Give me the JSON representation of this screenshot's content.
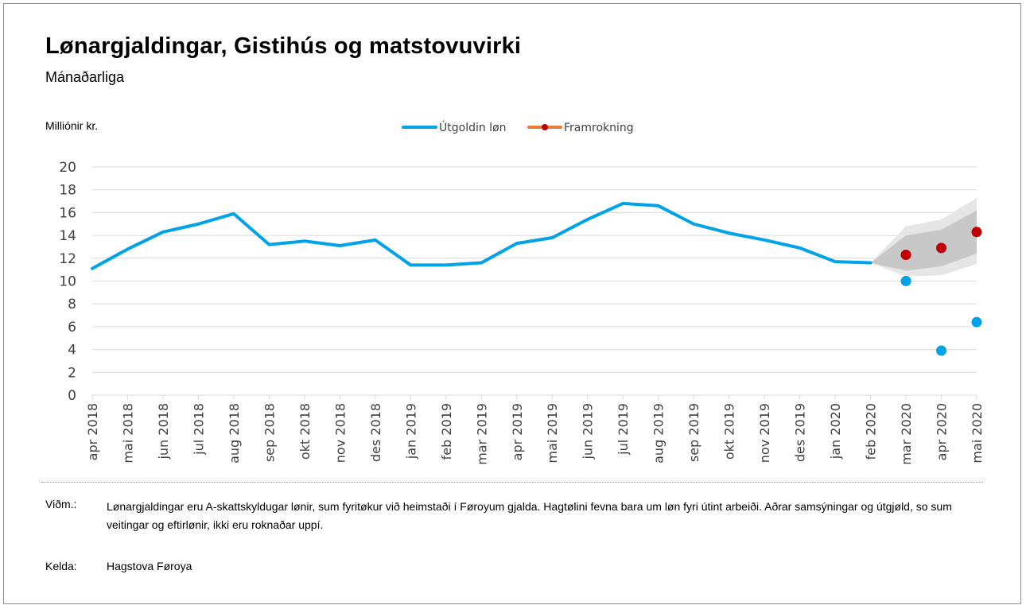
{
  "title": "Lønargjaldingar, Gistihús og matstovuvirki",
  "subtitle": "Mánaðarliga",
  "unit_label": "Milliónir kr.",
  "legend": {
    "actual": "Útgoldin løn",
    "forecast": "Framrokning"
  },
  "footer": {
    "note_label": "Viðm.:",
    "note_text": "Lønargjaldingar eru A-skattskyldugar lønir, sum fyritøkur við heimstaði í Føroyum gjalda. Hagtølini fevna bara um løn fyri útint arbeiði. Aðrar samsýningar og útgjøld, so sum veitingar og eftirlønir, ikki eru roknaðar uppí.",
    "source_label": "Kelda:",
    "source_text": "Hagstova Føroya"
  },
  "colors": {
    "actual": "#00a2e8",
    "forecast_point": "#c00000",
    "forecast_legend_line": "#ed7d31",
    "band_outer": "#e6e6e6",
    "band_inner": "#c8c8c8",
    "grid": "#d9d9d9"
  },
  "chart_data": {
    "type": "line",
    "categories": [
      "apr 2018",
      "mai 2018",
      "jun 2018",
      "jul 2018",
      "aug 2018",
      "sep 2018",
      "okt 2018",
      "nov 2018",
      "des 2018",
      "jan 2019",
      "feb 2019",
      "mar 2019",
      "apr 2019",
      "mai 2019",
      "jun 2019",
      "jul 2019",
      "aug 2019",
      "sep 2019",
      "okt 2019",
      "nov 2019",
      "des 2019",
      "jan 2020",
      "feb 2020",
      "mar 2020",
      "apr 2020",
      "mai 2020"
    ],
    "ylim": [
      0,
      20
    ],
    "yticks": [
      0,
      2,
      4,
      6,
      8,
      10,
      12,
      14,
      16,
      18,
      20
    ],
    "grid": true,
    "legend_position": "top-center",
    "series": [
      {
        "name": "Útgoldin løn",
        "values": [
          11.1,
          12.8,
          14.3,
          15.0,
          15.9,
          13.2,
          13.5,
          13.1,
          13.6,
          11.4,
          11.4,
          11.6,
          13.3,
          13.8,
          15.4,
          16.8,
          16.6,
          15.0,
          14.2,
          13.6,
          12.9,
          11.7,
          11.6,
          null,
          null,
          null
        ],
        "extra_points": [
          {
            "category": "mar 2020",
            "value": 10.0
          },
          {
            "category": "apr 2020",
            "value": 3.9
          },
          {
            "category": "mai 2020",
            "value": 6.4
          }
        ]
      },
      {
        "name": "Framrokning",
        "points": [
          {
            "category": "mar 2020",
            "value": 12.3
          },
          {
            "category": "apr 2020",
            "value": 12.9
          },
          {
            "category": "mai 2020",
            "value": 14.3
          }
        ],
        "band_outer": [
          {
            "category": "feb 2020",
            "low": 11.6,
            "high": 11.6
          },
          {
            "category": "mar 2020",
            "low": 10.4,
            "high": 14.8
          },
          {
            "category": "apr 2020",
            "low": 10.5,
            "high": 15.4
          },
          {
            "category": "mai 2020",
            "low": 11.5,
            "high": 17.3
          }
        ],
        "band_inner": [
          {
            "category": "feb 2020",
            "low": 11.6,
            "high": 11.6
          },
          {
            "category": "mar 2020",
            "low": 10.9,
            "high": 14.0
          },
          {
            "category": "apr 2020",
            "low": 11.3,
            "high": 14.5
          },
          {
            "category": "mai 2020",
            "low": 12.4,
            "high": 16.2
          }
        ]
      }
    ]
  }
}
